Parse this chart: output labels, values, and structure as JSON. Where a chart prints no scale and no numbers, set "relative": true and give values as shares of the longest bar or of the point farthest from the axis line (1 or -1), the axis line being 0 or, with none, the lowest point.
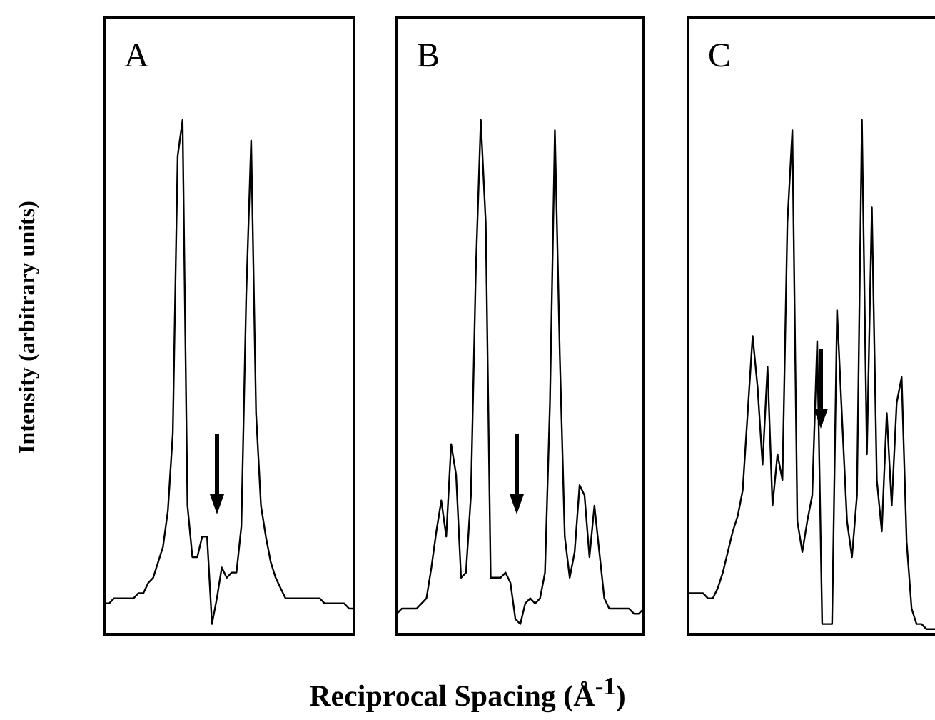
{
  "chart_data": [
    {
      "type": "line",
      "ylabel": "Intensity (arbitrary units)",
      "annotations": [
        "A"
      ],
      "relative": true,
      "legend": false,
      "tick_labels": false,
      "color": "#000000",
      "categories": [
        null,
        null,
        null,
        null,
        null,
        null,
        null,
        null,
        null,
        null,
        null,
        null,
        null,
        null,
        null,
        null,
        null,
        null,
        null,
        null,
        null,
        null,
        null,
        null,
        null,
        null,
        null,
        null,
        null,
        null,
        null,
        null,
        null,
        null,
        null,
        null,
        null,
        null,
        null,
        null,
        null,
        null,
        null,
        null,
        null,
        null,
        null,
        null,
        null,
        null,
        null,
        null
      ],
      "values": [
        0.06,
        0.06,
        0.07,
        0.07,
        0.07,
        0.07,
        0.07,
        0.08,
        0.08,
        0.1,
        0.11,
        0.14,
        0.17,
        0.24,
        0.39,
        0.93,
        1,
        0.25,
        0.15,
        0.15,
        0.19,
        0.19,
        0.02,
        0.07,
        0.13,
        0.11,
        0.12,
        0.12,
        0.21,
        0.66,
        0.96,
        0.43,
        0.25,
        0.19,
        0.14,
        0.11,
        0.09,
        0.07,
        0.07,
        0.07,
        0.07,
        0.07,
        0.07,
        0.07,
        0.07,
        0.06,
        0.06,
        0.06,
        0.06,
        0.06,
        0.05,
        0.05
      ]
    },
    {
      "type": "line",
      "xlabel": "Reciprocal Spacing (Å$^{-1}$)",
      "annotations": [
        "B"
      ],
      "relative": true,
      "legend": false,
      "tick_labels": false,
      "color": "#000000",
      "categories": [
        null,
        null,
        null,
        null,
        null,
        null,
        null,
        null,
        null,
        null,
        null,
        null,
        null,
        null,
        null,
        null,
        null,
        null,
        null,
        null,
        null,
        null,
        null,
        null,
        null,
        null,
        null,
        null,
        null,
        null,
        null,
        null,
        null,
        null,
        null,
        null,
        null,
        null,
        null,
        null,
        null,
        null,
        null,
        null,
        null,
        null,
        null,
        null,
        null,
        null,
        null
      ],
      "values": [
        0.04,
        0.05,
        0.05,
        0.05,
        0.05,
        0.06,
        0.07,
        0.13,
        0.2,
        0.26,
        0.19,
        0.37,
        0.31,
        0.11,
        0.12,
        0.27,
        0.71,
        1,
        0.8,
        0.11,
        0.11,
        0.11,
        0.12,
        0.1,
        0.03,
        0.02,
        0.06,
        0.07,
        0.06,
        0.07,
        0.12,
        0.45,
        0.98,
        0.54,
        0.19,
        0.11,
        0.16,
        0.29,
        0.27,
        0.15,
        0.25,
        0.16,
        0.07,
        0.05,
        0.05,
        0.05,
        0.05,
        0.05,
        0.04,
        0.04,
        0.05
      ]
    },
    {
      "type": "line",
      "annotations": [
        "C"
      ],
      "relative": true,
      "legend": false,
      "tick_labels": false,
      "color": "#000000",
      "categories": [
        null,
        null,
        null,
        null,
        null,
        null,
        null,
        null,
        null,
        null,
        null,
        null,
        null,
        null,
        null,
        null,
        null,
        null,
        null,
        null,
        null,
        null,
        null,
        null,
        null,
        null,
        null,
        null,
        null,
        null,
        null,
        null,
        null,
        null,
        null,
        null,
        null,
        null,
        null,
        null,
        null,
        null,
        null,
        null,
        null,
        null,
        null,
        null,
        null,
        null,
        null
      ],
      "values": [
        0.08,
        0.08,
        0.08,
        0.08,
        0.07,
        0.07,
        0.09,
        0.12,
        0.16,
        0.2,
        0.23,
        0.28,
        0.43,
        0.58,
        0.48,
        0.33,
        0.52,
        0.25,
        0.35,
        0.3,
        0.8,
        0.98,
        0.22,
        0.16,
        0.22,
        0.27,
        0.57,
        0.02,
        0.02,
        0.02,
        0.63,
        0.42,
        0.22,
        0.15,
        0.27,
        1,
        0.35,
        0.83,
        0.3,
        0.2,
        0.43,
        0.25,
        0.45,
        0.5,
        0.18,
        0.05,
        0.02,
        0.02,
        0.01,
        0.01,
        0.01
      ]
    }
  ]
}
